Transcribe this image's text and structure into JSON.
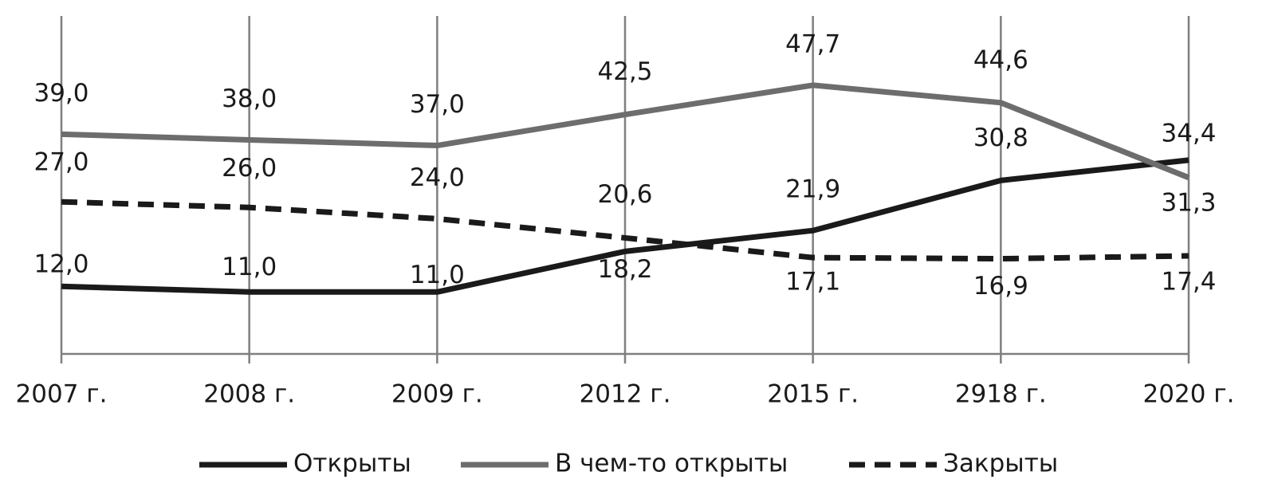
{
  "chart_data": {
    "type": "line",
    "categories": [
      "2007 г.",
      "2008 г.",
      "2009 г.",
      "2012 г.",
      "2015 г.",
      "2918 г.",
      "2020 г."
    ],
    "series": [
      {
        "name": "Открыты",
        "color": "#1a1a1a",
        "dash": false,
        "values": [
          12.0,
          11.0,
          11.0,
          18.2,
          21.9,
          30.8,
          34.4
        ],
        "value_labels": [
          "12,0",
          "11,0",
          "11,0",
          "18,2",
          "21,9",
          "30,8",
          "34,4"
        ]
      },
      {
        "name": "В чем-то открыты",
        "color": "#6d6d6d",
        "dash": false,
        "values": [
          39.0,
          38.0,
          37.0,
          42.5,
          47.7,
          44.6,
          31.3
        ],
        "value_labels": [
          "39,0",
          "38,0",
          "37,0",
          "42,5",
          "47,7",
          "44,6",
          "31,3"
        ]
      },
      {
        "name": "Закрыты",
        "color": "#1a1a1a",
        "dash": true,
        "values": [
          27.0,
          26.0,
          24.0,
          20.6,
          17.1,
          16.9,
          17.4
        ],
        "value_labels": [
          "27,0",
          "26,0",
          "24,0",
          "20,6",
          "17,1",
          "16,9",
          "17,4"
        ]
      }
    ],
    "ylim": [
      0,
      60
    ],
    "grid": true,
    "legend": "bottom"
  }
}
